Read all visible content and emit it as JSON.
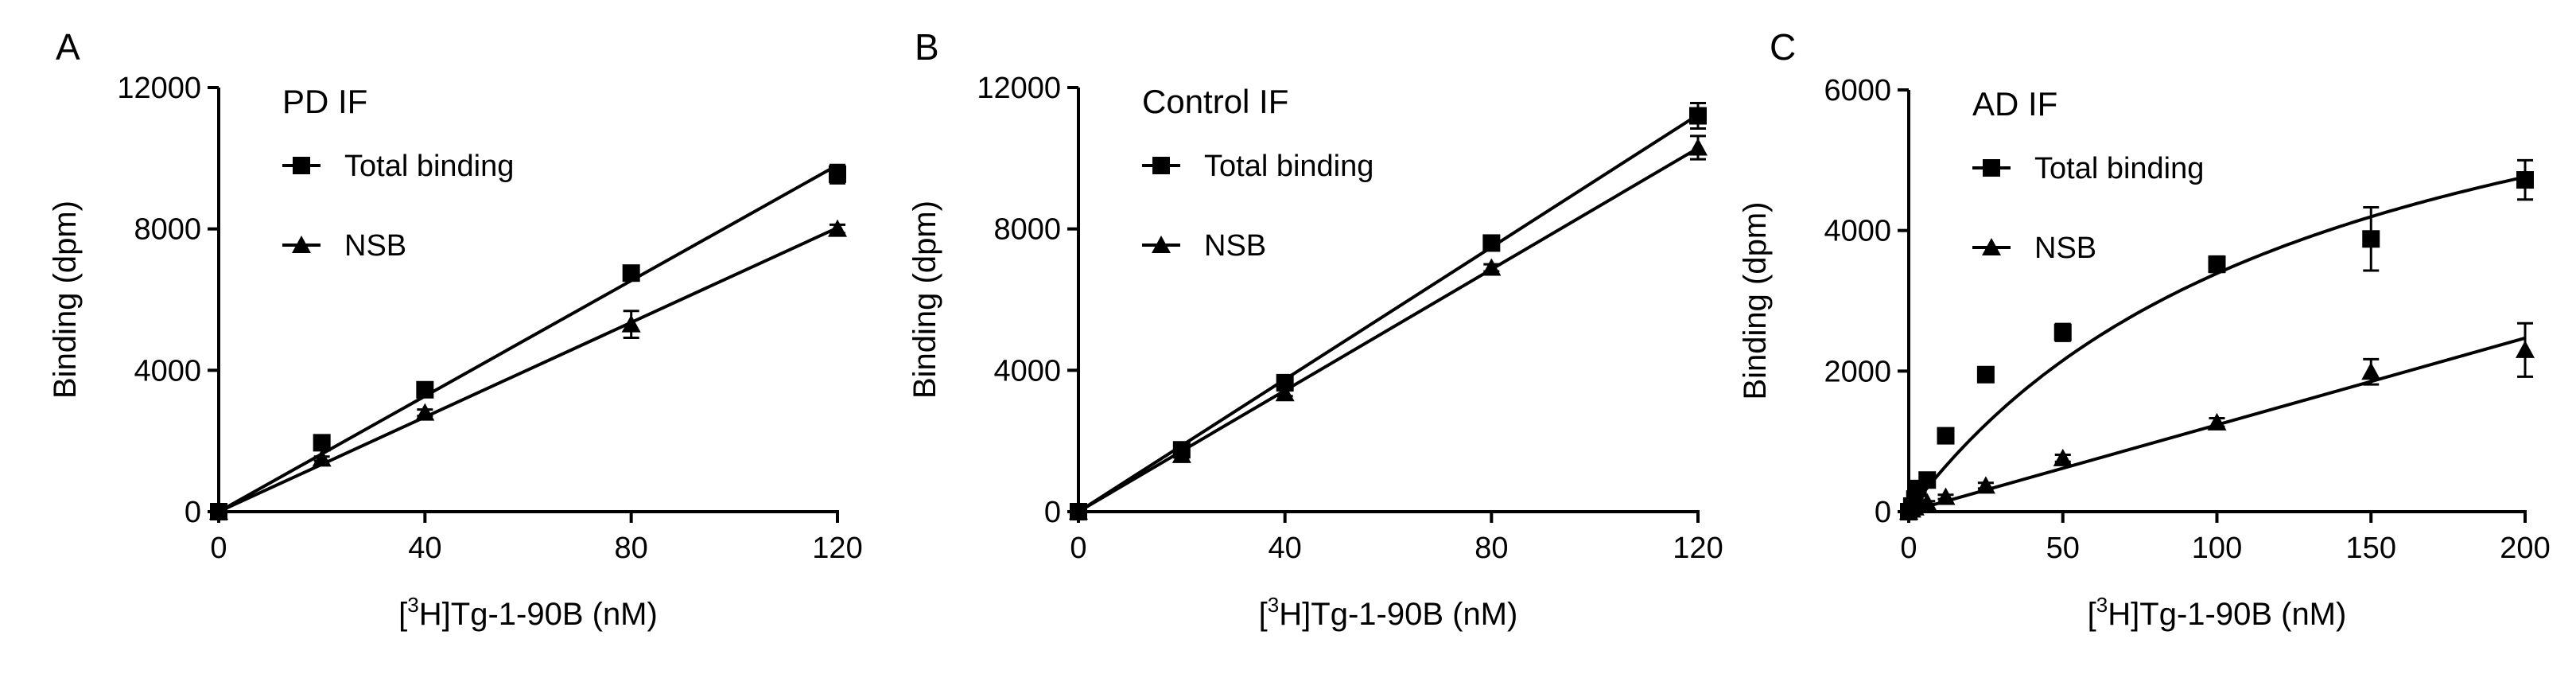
{
  "chart_data": [
    {
      "type": "scatter",
      "panel_label": "A",
      "inset_title": "PD IF",
      "xlabel_pre": "[",
      "xlabel_sup": "3",
      "xlabel_post": "H]Tg-1-90B (nM)",
      "ylabel": "Binding (dpm)",
      "xlim": [
        0,
        120
      ],
      "ylim": [
        0,
        12000
      ],
      "xticks": [
        0,
        40,
        80,
        120
      ],
      "yticks": [
        0,
        4000,
        8000,
        12000
      ],
      "legend_position": "top-left",
      "series": [
        {
          "name": "Total binding",
          "marker": "square",
          "fit": "linear",
          "x": [
            0,
            20,
            40,
            80,
            120
          ],
          "y": [
            0,
            1950,
            3450,
            6750,
            9550
          ],
          "err": [
            0,
            80,
            100,
            150,
            260
          ]
        },
        {
          "name": "NSB",
          "marker": "triangle",
          "fit": "linear",
          "x": [
            0,
            20,
            40,
            80,
            120
          ],
          "y": [
            0,
            1500,
            2800,
            5300,
            8000
          ],
          "err": [
            0,
            60,
            90,
            380,
            120
          ]
        }
      ]
    },
    {
      "type": "scatter",
      "panel_label": "B",
      "inset_title": "Control IF",
      "xlabel_pre": "[",
      "xlabel_sup": "3",
      "xlabel_post": "H]Tg-1-90B (nM)",
      "ylabel": "Binding (dpm)",
      "xlim": [
        0,
        120
      ],
      "ylim": [
        0,
        12000
      ],
      "xticks": [
        0,
        40,
        80,
        120
      ],
      "yticks": [
        0,
        4000,
        8000,
        12000
      ],
      "legend_position": "top-left",
      "series": [
        {
          "name": "Total binding",
          "marker": "square",
          "fit": "linear",
          "x": [
            0,
            20,
            40,
            80,
            120
          ],
          "y": [
            0,
            1750,
            3650,
            7600,
            11200
          ],
          "err": [
            0,
            60,
            90,
            120,
            360
          ]
        },
        {
          "name": "NSB",
          "marker": "triangle",
          "fit": "linear",
          "x": [
            0,
            20,
            40,
            80,
            120
          ],
          "y": [
            0,
            1600,
            3350,
            6900,
            10300
          ],
          "err": [
            0,
            60,
            80,
            100,
            330
          ]
        }
      ]
    },
    {
      "type": "scatter",
      "panel_label": "C",
      "inset_title": "AD IF",
      "xlabel_pre": "[",
      "xlabel_sup": "3",
      "xlabel_post": "H]Tg-1-90B (nM)",
      "ylabel": "Binding (dpm)",
      "xlim": [
        0,
        200
      ],
      "ylim": [
        0,
        6000
      ],
      "xticks": [
        0,
        50,
        100,
        150,
        200
      ],
      "yticks": [
        0,
        2000,
        4000,
        6000
      ],
      "legend_position": "top-left",
      "series": [
        {
          "name": "Total binding",
          "marker": "square",
          "fit": "saturation",
          "bmax": 8000,
          "kd": 136,
          "ns": 0,
          "x": [
            0,
            1,
            2,
            3,
            6,
            12,
            25,
            50,
            100,
            150,
            200
          ],
          "y": [
            0,
            80,
            180,
            330,
            450,
            1080,
            1950,
            2550,
            3520,
            3880,
            4720
          ],
          "err": [
            0,
            20,
            30,
            40,
            60,
            60,
            80,
            120,
            110,
            450,
            280
          ]
        },
        {
          "name": "NSB",
          "marker": "triangle",
          "fit": "linear",
          "x": [
            0,
            1,
            2,
            3,
            6,
            12,
            25,
            50,
            100,
            150,
            200
          ],
          "y": [
            0,
            30,
            60,
            90,
            130,
            210,
            370,
            760,
            1270,
            1990,
            2300
          ],
          "err": [
            0,
            10,
            15,
            15,
            20,
            30,
            40,
            50,
            60,
            180,
            380
          ]
        }
      ]
    }
  ]
}
